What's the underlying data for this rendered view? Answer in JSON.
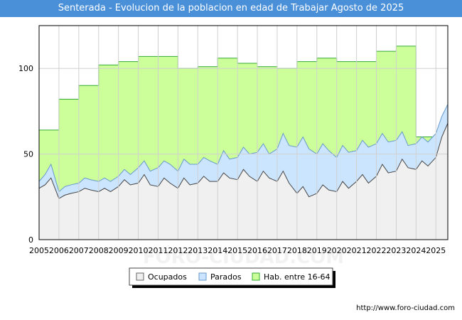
{
  "chart_data": {
    "type": "area",
    "title": "Senterada - Evolucion de la poblacion en edad de Trabajar Agosto de 2025",
    "xlabel": "",
    "ylabel": "",
    "x_ticks": [
      "2005",
      "2006",
      "2007",
      "2008",
      "2009",
      "2010",
      "2011",
      "2012",
      "2013",
      "2014",
      "2015",
      "2016",
      "2017",
      "2018",
      "2019",
      "2020",
      "2021",
      "2022",
      "2023",
      "2024",
      "2025"
    ],
    "y_ticks": [
      0,
      50,
      100
    ],
    "xlim": [
      2005,
      2025.6
    ],
    "ylim": [
      0,
      125
    ],
    "grid": true,
    "legend_placement": "bottom",
    "watermark": "FORO-CIUDAD.COM",
    "colors": {
      "hab": "#ccff99",
      "hab_line": "#33aa33",
      "parados": "#cce5ff",
      "parados_line": "#6699cc",
      "ocupados": "#f0f0f0",
      "ocupados_line": "#444444"
    },
    "series": [
      {
        "name": "Hab. entre 16-64",
        "x": [
          2005,
          2006,
          2007,
          2008,
          2009,
          2010,
          2011,
          2012,
          2013,
          2014,
          2015,
          2016,
          2017,
          2018,
          2019,
          2020,
          2021,
          2022,
          2023,
          2024
        ],
        "values": [
          64,
          82,
          90,
          102,
          104,
          107,
          107,
          100,
          101,
          106,
          103,
          101,
          100,
          104,
          106,
          104,
          104,
          110,
          113,
          60
        ]
      },
      {
        "name": "Parados",
        "x": [
          2005,
          2005.3,
          2005.6,
          2006,
          2006.3,
          2006.6,
          2007,
          2007.3,
          2007.6,
          2008,
          2008.3,
          2008.6,
          2009,
          2009.3,
          2009.6,
          2010,
          2010.3,
          2010.6,
          2011,
          2011.3,
          2011.6,
          2012,
          2012.3,
          2012.6,
          2013,
          2013.3,
          2013.6,
          2014,
          2014.3,
          2014.6,
          2015,
          2015.3,
          2015.6,
          2016,
          2016.3,
          2016.6,
          2017,
          2017.3,
          2017.6,
          2018,
          2018.3,
          2018.6,
          2019,
          2019.3,
          2019.6,
          2020,
          2020.3,
          2020.6,
          2021,
          2021.3,
          2021.6,
          2022,
          2022.3,
          2022.6,
          2023,
          2023.3,
          2023.6,
          2024,
          2024.3,
          2024.6,
          2025,
          2025.3,
          2025.6
        ],
        "values": [
          34,
          38,
          44,
          28,
          31,
          32,
          33,
          36,
          35,
          34,
          36,
          34,
          37,
          41,
          38,
          42,
          46,
          40,
          42,
          46,
          44,
          40,
          47,
          44,
          44,
          48,
          46,
          44,
          52,
          47,
          48,
          54,
          50,
          51,
          56,
          50,
          53,
          62,
          55,
          54,
          60,
          53,
          50,
          56,
          52,
          48,
          55,
          51,
          52,
          58,
          54,
          56,
          62,
          57,
          58,
          63,
          55,
          56,
          60,
          57,
          62,
          72,
          79
        ]
      },
      {
        "name": "Ocupados",
        "x": [
          2005,
          2005.3,
          2005.6,
          2006,
          2006.3,
          2006.6,
          2007,
          2007.3,
          2007.6,
          2008,
          2008.3,
          2008.6,
          2009,
          2009.3,
          2009.6,
          2010,
          2010.3,
          2010.6,
          2011,
          2011.3,
          2011.6,
          2012,
          2012.3,
          2012.6,
          2013,
          2013.3,
          2013.6,
          2014,
          2014.3,
          2014.6,
          2015,
          2015.3,
          2015.6,
          2016,
          2016.3,
          2016.6,
          2017,
          2017.3,
          2017.6,
          2018,
          2018.3,
          2018.6,
          2019,
          2019.3,
          2019.6,
          2020,
          2020.3,
          2020.6,
          2021,
          2021.3,
          2021.6,
          2022,
          2022.3,
          2022.6,
          2023,
          2023.3,
          2023.6,
          2024,
          2024.3,
          2024.6,
          2025,
          2025.3,
          2025.6
        ],
        "values": [
          30,
          32,
          36,
          24,
          26,
          27,
          28,
          30,
          29,
          28,
          30,
          28,
          31,
          35,
          32,
          33,
          38,
          32,
          31,
          36,
          33,
          30,
          36,
          32,
          33,
          37,
          34,
          34,
          39,
          36,
          35,
          41,
          37,
          34,
          40,
          36,
          34,
          40,
          33,
          27,
          31,
          25,
          27,
          32,
          29,
          28,
          34,
          30,
          34,
          38,
          33,
          37,
          44,
          39,
          40,
          47,
          42,
          41,
          46,
          43,
          48,
          60,
          68
        ]
      }
    ]
  }
}
